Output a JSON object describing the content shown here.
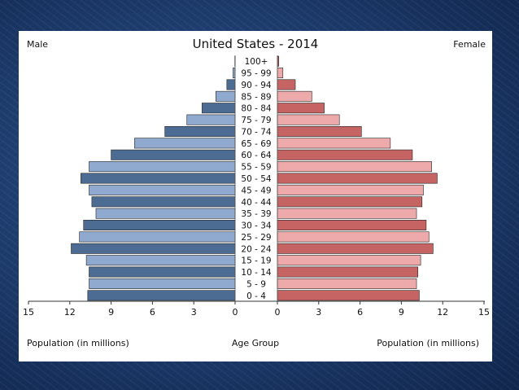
{
  "chart_data": {
    "type": "bar",
    "subtype": "population-pyramid",
    "title": "United States - 2014",
    "left_label": "Male",
    "right_label": "Female",
    "xlabel_left": "Population (in millions)",
    "xlabel_center": "Age Group",
    "xlabel_right": "Population (in millions)",
    "xlim": [
      0,
      15
    ],
    "ticks": [
      "15",
      "12",
      "9",
      "6",
      "3",
      "0",
      "0",
      "3",
      "6",
      "9",
      "12",
      "15"
    ],
    "tick_values": [
      15,
      12,
      9,
      6,
      3,
      0,
      0,
      3,
      6,
      9,
      12,
      15
    ],
    "categories": [
      "100+",
      "95 - 99",
      "90 - 94",
      "85 - 89",
      "80 - 84",
      "75 - 79",
      "70 - 74",
      "65 - 69",
      "60 - 64",
      "55 - 59",
      "50 - 54",
      "45 - 49",
      "40 - 44",
      "35 - 39",
      "30 - 34",
      "25 - 29",
      "20 - 24",
      "15 - 19",
      "10 - 14",
      "5 - 9",
      "0 - 4"
    ],
    "series": [
      {
        "name": "Male",
        "values": [
          0.02,
          0.15,
          0.6,
          1.4,
          2.4,
          3.5,
          5.1,
          7.3,
          9.0,
          10.6,
          11.2,
          10.6,
          10.4,
          10.1,
          11.0,
          11.3,
          11.9,
          10.8,
          10.6,
          10.6,
          10.7
        ]
      },
      {
        "name": "Female",
        "values": [
          0.1,
          0.4,
          1.3,
          2.5,
          3.4,
          4.5,
          6.1,
          8.2,
          9.8,
          11.2,
          11.6,
          10.6,
          10.5,
          10.1,
          10.8,
          11.0,
          11.3,
          10.4,
          10.2,
          10.1,
          10.3
        ]
      }
    ],
    "colors": {
      "male_dark": "#4d6c93",
      "male_light": "#8fa9cf",
      "female_dark": "#c66464",
      "female_light": "#eeaaaa",
      "bar_outline": "#222222",
      "axis": "#333333"
    },
    "grid": false,
    "legend": "none"
  }
}
